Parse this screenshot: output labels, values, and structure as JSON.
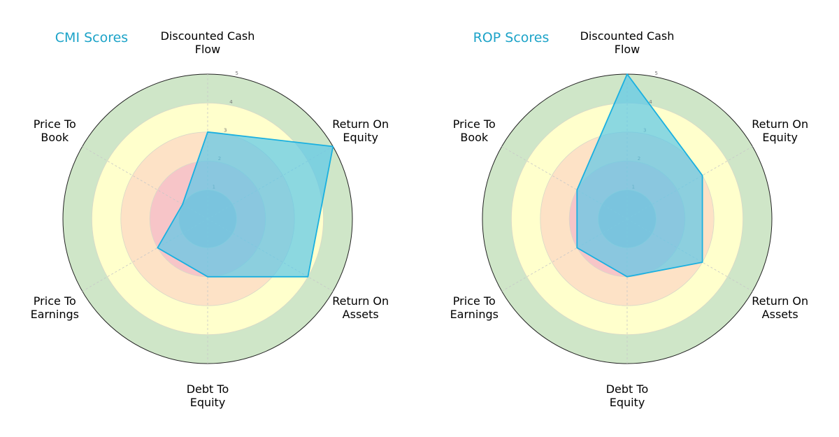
{
  "colors": {
    "title": "#1ca3c8",
    "series_fill": "#5bc8e8",
    "series_line": "#1ab0e0",
    "band_colors": [
      "#f7c5c8",
      "#fde2c6",
      "#ffffcc",
      "#cfe6c8"
    ],
    "inner_circle": "#9bb7c6"
  },
  "chart_data": [
    {
      "type": "radar",
      "title": "CMI Scores",
      "axes": [
        "Discounted Cash Flow",
        "Return On Equity",
        "Return On Assets",
        "Debt To Equity",
        "Price To Earnings",
        "Price To Book"
      ],
      "axis_labels": [
        [
          "Discounted Cash",
          "Flow"
        ],
        [
          "Return On",
          "Equity"
        ],
        [
          "Return On",
          "Assets"
        ],
        [
          "Debt To",
          "Equity"
        ],
        [
          "Price To",
          "Earnings"
        ],
        [
          "Price To",
          "Book"
        ]
      ],
      "ticks": [
        "1",
        "2",
        "3",
        "4",
        "5"
      ],
      "rlim": [
        0,
        5
      ],
      "series": [
        {
          "values": [
            3,
            5,
            4,
            2,
            2,
            1
          ]
        }
      ]
    },
    {
      "type": "radar",
      "title": "ROP Scores",
      "axes": [
        "Discounted Cash Flow",
        "Return On Equity",
        "Return On Assets",
        "Debt To Equity",
        "Price To Earnings",
        "Price To Book"
      ],
      "axis_labels": [
        [
          "Discounted Cash",
          "Flow"
        ],
        [
          "Return On",
          "Equity"
        ],
        [
          "Return On",
          "Assets"
        ],
        [
          "Debt To",
          "Equity"
        ],
        [
          "Price To",
          "Earnings"
        ],
        [
          "Price To",
          "Book"
        ]
      ],
      "ticks": [
        "1",
        "2",
        "3",
        "4",
        "5"
      ],
      "rlim": [
        0,
        5
      ],
      "series": [
        {
          "values": [
            5,
            3,
            3,
            2,
            2,
            2
          ]
        }
      ]
    }
  ]
}
